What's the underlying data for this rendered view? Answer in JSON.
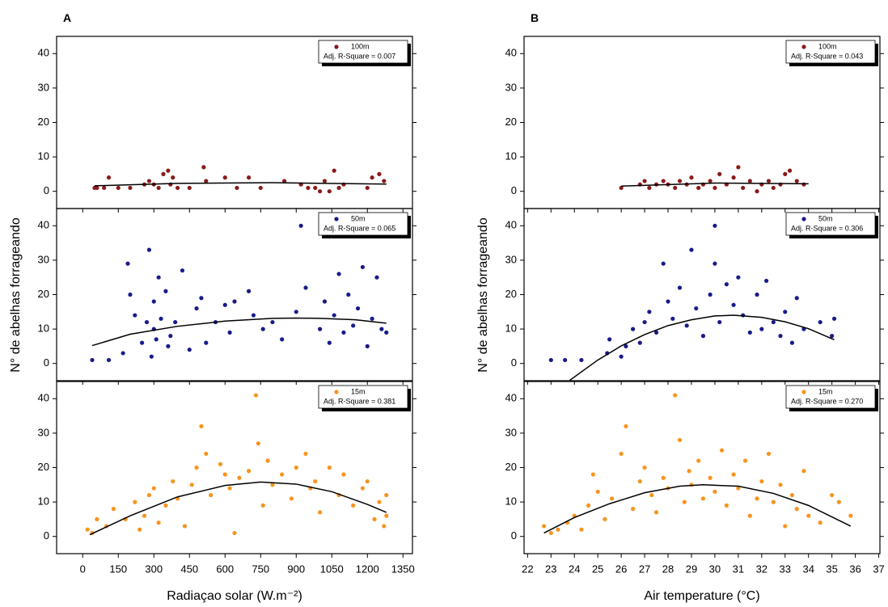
{
  "figure": {
    "columns": [
      {
        "label": "A",
        "xlabel": "Radiaçao solar (W.m⁻²)",
        "ylabel": "N° de abelhas forrageando",
        "xlim": [
          -110,
          1390
        ],
        "xticks": [
          0,
          150,
          300,
          450,
          600,
          750,
          900,
          1050,
          1200,
          1350
        ]
      },
      {
        "label": "B",
        "xlabel": "Air temperature (°C)",
        "ylabel": "N° de abelhas forrageando",
        "xlim": [
          21.85,
          37.05
        ],
        "xticks": [
          22,
          23,
          24,
          25,
          26,
          27,
          28,
          29,
          30,
          31,
          32,
          33,
          34,
          35,
          36,
          37
        ]
      }
    ]
  },
  "chart_data": [
    {
      "type": "scatter",
      "annotation": "Adj. R-Square = 0.007",
      "ylim": [
        -5,
        45
      ],
      "yticks": [
        0,
        10,
        20,
        30,
        40
      ],
      "series": [
        {
          "name": "100m",
          "color": "#8b1a1a",
          "x": [
            50,
            60,
            90,
            110,
            150,
            200,
            260,
            280,
            300,
            320,
            340,
            360,
            370,
            380,
            400,
            450,
            510,
            520,
            600,
            650,
            700,
            750,
            850,
            920,
            950,
            980,
            1000,
            1020,
            1040,
            1060,
            1080,
            1100,
            1200,
            1220,
            1250,
            1270
          ],
          "values": [
            1,
            1,
            1,
            4,
            1,
            1,
            2,
            3,
            2,
            1,
            5,
            6,
            2,
            4,
            1,
            1,
            7,
            3,
            4,
            1,
            4,
            1,
            3,
            2,
            1,
            1,
            0,
            3,
            0,
            6,
            1,
            2,
            1,
            4,
            5,
            3
          ]
        }
      ],
      "fit": {
        "color": "#000000",
        "x": [
          50,
          400,
          800,
          1280
        ],
        "values": [
          1.6,
          2.3,
          2.5,
          2.1
        ]
      }
    },
    {
      "type": "scatter",
      "annotation": "Adj. R-Square = 0.065",
      "ylim": [
        -5,
        45
      ],
      "yticks": [
        0,
        10,
        20,
        30,
        40
      ],
      "series": [
        {
          "name": "50m",
          "color": "#1a1a8b",
          "x": [
            40,
            110,
            170,
            190,
            200,
            220,
            250,
            270,
            280,
            290,
            300,
            300,
            310,
            320,
            330,
            350,
            360,
            370,
            390,
            420,
            450,
            480,
            500,
            520,
            560,
            600,
            620,
            640,
            700,
            720,
            760,
            800,
            840,
            900,
            920,
            940,
            1000,
            1020,
            1040,
            1060,
            1080,
            1100,
            1120,
            1140,
            1160,
            1180,
            1200,
            1220,
            1240,
            1260,
            1280
          ],
          "values": [
            1,
            1,
            3,
            29,
            20,
            14,
            6,
            12,
            33,
            2,
            18,
            10,
            7,
            25,
            13,
            21,
            5,
            8,
            12,
            27,
            4,
            16,
            19,
            6,
            12,
            17,
            9,
            18,
            21,
            14,
            10,
            12,
            7,
            15,
            40,
            22,
            10,
            18,
            6,
            14,
            26,
            9,
            20,
            11,
            16,
            28,
            5,
            13,
            25,
            10,
            9
          ]
        }
      ],
      "fit": {
        "color": "#000000",
        "x": [
          40,
          200,
          400,
          600,
          800,
          900,
          1000,
          1150,
          1280
        ],
        "values": [
          5.2,
          8.5,
          10.8,
          12.3,
          13.1,
          13.2,
          13.1,
          12.7,
          11.7
        ]
      }
    },
    {
      "type": "scatter",
      "annotation": "Adj. R-Square = 0.381",
      "ylim": [
        -5,
        45
      ],
      "yticks": [
        0,
        10,
        20,
        30,
        40
      ],
      "series": [
        {
          "name": "15m",
          "color": "#f7941d",
          "x": [
            20,
            40,
            60,
            100,
            130,
            180,
            220,
            240,
            260,
            280,
            300,
            320,
            350,
            380,
            400,
            430,
            460,
            480,
            500,
            520,
            540,
            580,
            600,
            620,
            640,
            660,
            700,
            730,
            740,
            760,
            780,
            800,
            840,
            880,
            900,
            940,
            960,
            980,
            1000,
            1040,
            1080,
            1100,
            1140,
            1180,
            1200,
            1230,
            1250,
            1270,
            1280,
            1280
          ],
          "values": [
            2,
            1,
            5,
            3,
            8,
            5,
            10,
            2,
            6,
            12,
            14,
            4,
            9,
            16,
            11,
            3,
            15,
            20,
            32,
            24,
            12,
            21,
            18,
            14,
            1,
            17,
            19,
            41,
            27,
            9,
            22,
            15,
            18,
            11,
            20,
            24,
            14,
            16,
            7,
            20,
            12,
            18,
            9,
            14,
            16,
            5,
            10,
            3,
            12,
            6
          ]
        }
      ],
      "fit": {
        "color": "#000000",
        "x": [
          30,
          200,
          400,
          600,
          750,
          900,
          1050,
          1200,
          1280
        ],
        "values": [
          0.5,
          6,
          11.5,
          14.8,
          15.8,
          15.2,
          13,
          9.3,
          7
        ]
      }
    },
    {
      "type": "scatter",
      "annotation": "Adj. R-Square = 0.043",
      "ylim": [
        -5,
        45
      ],
      "yticks": [
        0,
        10,
        20,
        30,
        40
      ],
      "series": [
        {
          "name": "100m",
          "color": "#8b1a1a",
          "x": [
            26,
            26.8,
            27,
            27.2,
            27.5,
            27.8,
            28,
            28.3,
            28.5,
            28.8,
            29,
            29.3,
            29.5,
            29.8,
            30,
            30.2,
            30.5,
            30.8,
            31,
            31.2,
            31.5,
            31.8,
            32,
            32.3,
            32.5,
            32.8,
            33,
            33.2,
            33.5,
            33.8
          ],
          "values": [
            1,
            2,
            3,
            1,
            2,
            3,
            2,
            1,
            3,
            2,
            4,
            1,
            2,
            3,
            1,
            5,
            2,
            4,
            7,
            1,
            3,
            0,
            2,
            3,
            1,
            2,
            5,
            6,
            3,
            2
          ]
        }
      ],
      "fit": {
        "color": "#000000",
        "x": [
          26,
          30,
          34
        ],
        "values": [
          1.5,
          2.4,
          2.2
        ]
      }
    },
    {
      "type": "scatter",
      "annotation": "Adj. R-Square = 0.306",
      "ylim": [
        -5,
        45
      ],
      "yticks": [
        0,
        10,
        20,
        30,
        40
      ],
      "series": [
        {
          "name": "50m",
          "color": "#1a1a8b",
          "x": [
            23,
            23.6,
            24.3,
            25.4,
            25.5,
            26,
            26.2,
            26.5,
            26.8,
            27,
            27.2,
            27.5,
            27.8,
            28,
            28.2,
            28.5,
            28.8,
            29,
            29.2,
            29.5,
            29.8,
            30,
            30,
            30.2,
            30.5,
            30.8,
            31,
            31.2,
            31.5,
            31.8,
            32,
            32.2,
            32.5,
            32.8,
            33,
            33.3,
            33.5,
            33.8,
            34.5,
            35,
            35.1
          ],
          "values": [
            1,
            1,
            1,
            3,
            7,
            2,
            5,
            10,
            6,
            12,
            15,
            9,
            29,
            18,
            13,
            22,
            11,
            33,
            16,
            8,
            20,
            40,
            29,
            12,
            23,
            17,
            25,
            14,
            9,
            20,
            10,
            24,
            12,
            8,
            15,
            6,
            19,
            10,
            12,
            8,
            13
          ]
        }
      ],
      "fit": {
        "color": "#000000",
        "x": [
          23.8,
          25,
          26,
          27,
          28,
          29,
          30,
          30.8,
          32,
          33,
          34,
          35.1
        ],
        "values": [
          -4.9,
          1.0,
          5.1,
          8.4,
          11.0,
          12.7,
          13.8,
          14,
          13.4,
          12.1,
          10.1,
          6.9
        ]
      }
    },
    {
      "type": "scatter",
      "annotation": "Adj. R-Square = 0.270",
      "ylim": [
        -5,
        45
      ],
      "yticks": [
        0,
        10,
        20,
        30,
        40
      ],
      "series": [
        {
          "name": "15m",
          "color": "#f7941d",
          "x": [
            22.7,
            23,
            23.3,
            23.7,
            24,
            24.3,
            24.6,
            24.8,
            25,
            25.3,
            25.6,
            26,
            26.2,
            26.5,
            26.8,
            27,
            27.3,
            27.5,
            27.8,
            28,
            28.3,
            28.5,
            28.7,
            28.9,
            29,
            29.3,
            29.5,
            29.8,
            30,
            30.3,
            30.5,
            30.8,
            31,
            31.3,
            31.5,
            31.8,
            32,
            32.3,
            32.5,
            32.8,
            33,
            33.3,
            33.5,
            33.8,
            34,
            34.5,
            35,
            35.3,
            35.8
          ],
          "values": [
            3,
            1,
            2,
            4,
            6,
            2,
            9,
            18,
            13,
            5,
            11,
            24,
            32,
            8,
            16,
            20,
            12,
            7,
            17,
            14,
            41,
            28,
            10,
            19,
            15,
            22,
            11,
            17,
            13,
            25,
            9,
            18,
            14,
            22,
            6,
            11,
            16,
            24,
            10,
            15,
            3,
            12,
            8,
            19,
            6,
            4,
            12,
            10,
            6
          ]
        }
      ],
      "fit": {
        "color": "#000000",
        "x": [
          22.7,
          24,
          25.5,
          27,
          28.5,
          29.5,
          31,
          32.5,
          34,
          35.8
        ],
        "values": [
          1,
          5.5,
          9.5,
          12.7,
          14.6,
          15,
          14.6,
          12.5,
          9,
          3
        ]
      }
    }
  ]
}
